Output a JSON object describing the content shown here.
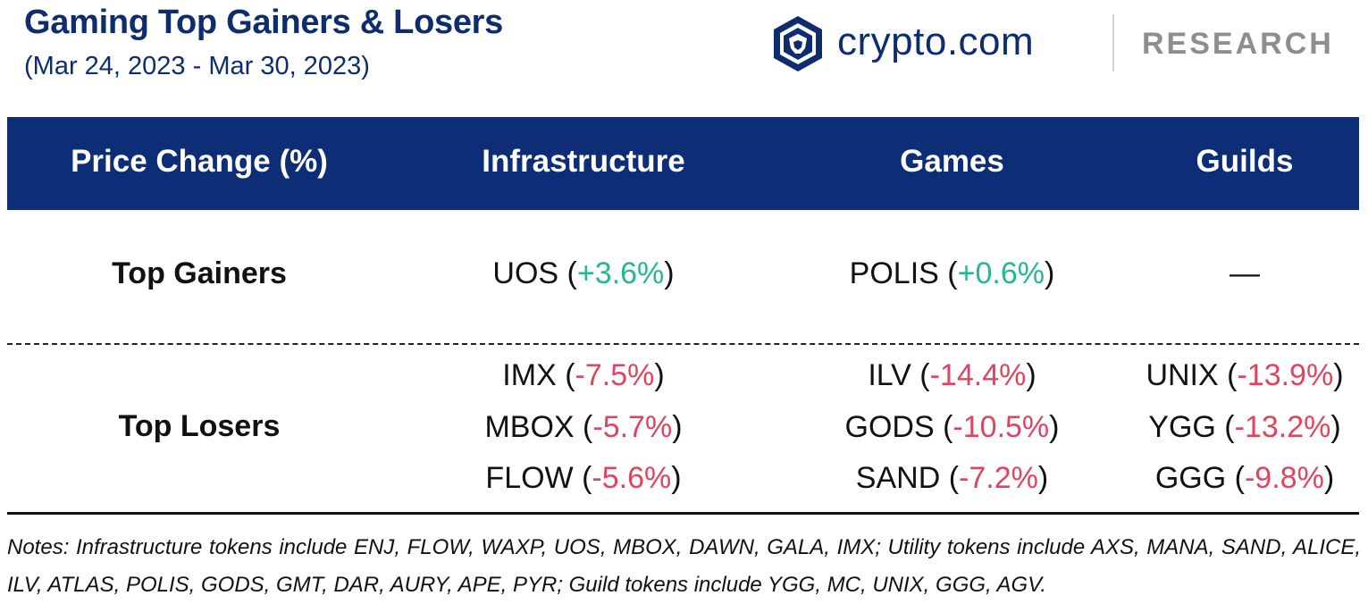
{
  "title": "Gaming Top Gainers & Losers",
  "subtitle": "(Mar 24, 2023 - Mar 30, 2023)",
  "brand": {
    "name": "crypto.com",
    "tagline": "RESEARCH",
    "icon": "lion-shield-icon",
    "color": "#0d2d6e"
  },
  "colors": {
    "header_bg": "#0d2d76",
    "positive": "#26b596",
    "negative": "#e0455d"
  },
  "table": {
    "headers": [
      "Price Change (%)",
      "Infrastructure",
      "Games",
      "Guilds"
    ],
    "gainers": {
      "label": "Top Gainers",
      "infrastructure": {
        "token": "UOS",
        "change": "+3.6%"
      },
      "games": {
        "token": "POLIS",
        "change": "+0.6%"
      },
      "guilds": "—"
    },
    "losers": {
      "label": "Top Losers",
      "infrastructure": [
        {
          "token": "IMX",
          "change": "-7.5%"
        },
        {
          "token": "MBOX",
          "change": "-5.7%"
        },
        {
          "token": "FLOW",
          "change": "-5.6%"
        }
      ],
      "games": [
        {
          "token": "ILV",
          "change": "-14.4%"
        },
        {
          "token": "GODS",
          "change": "-10.5%"
        },
        {
          "token": "SAND",
          "change": "-7.2%"
        }
      ],
      "guilds": [
        {
          "token": "UNIX",
          "change": "-13.9%"
        },
        {
          "token": "YGG",
          "change": "-13.2%"
        },
        {
          "token": "GGG",
          "change": "-9.8%"
        }
      ]
    }
  },
  "notes": "Notes: Infrastructure tokens include ENJ, FLOW, WAXP, UOS, MBOX, DAWN, GALA, IMX; Utility tokens include AXS, MANA, SAND, ALICE, ILV, ATLAS, POLIS, GODS, GMT, DAR, AURY, APE, PYR; Guild tokens include YGG, MC, UNIX, GGG, AGV."
}
